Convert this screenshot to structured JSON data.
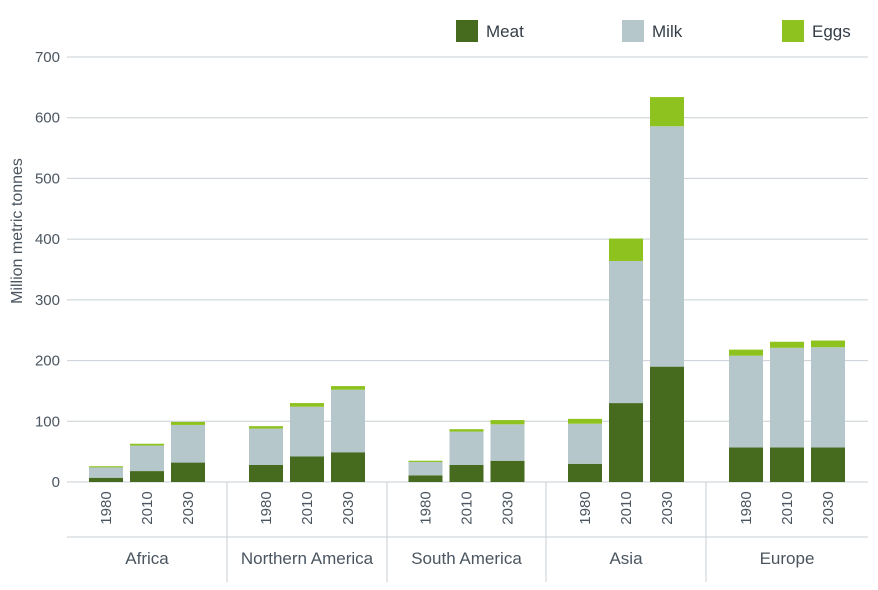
{
  "chart_data": {
    "type": "bar",
    "stacked": true,
    "ylabel": "Million metric tonnes",
    "ylim": [
      0,
      700
    ],
    "yticks": [
      0,
      100,
      200,
      300,
      400,
      500,
      600,
      700
    ],
    "grid": true,
    "legend_position": "top-right",
    "groups": [
      "Africa",
      "Northern America",
      "South America",
      "Asia",
      "Europe"
    ],
    "years": [
      "1980",
      "2010",
      "2030"
    ],
    "series": [
      {
        "name": "Meat",
        "color": "#466b1f",
        "values": [
          [
            7,
            18,
            32
          ],
          [
            28,
            42,
            49
          ],
          [
            11,
            28,
            35
          ],
          [
            30,
            130,
            190
          ],
          [
            57,
            57,
            57
          ]
        ]
      },
      {
        "name": "Milk",
        "color": "#b6c7cc",
        "values": [
          [
            17,
            42,
            62
          ],
          [
            60,
            82,
            103
          ],
          [
            22,
            55,
            60
          ],
          [
            66,
            234,
            396
          ],
          [
            151,
            164,
            165
          ]
        ]
      },
      {
        "name": "Eggs",
        "color": "#8dc21f",
        "values": [
          [
            2,
            3,
            5
          ],
          [
            4,
            6,
            6
          ],
          [
            2,
            4,
            7
          ],
          [
            8,
            37,
            48
          ],
          [
            10,
            10,
            11
          ]
        ]
      }
    ]
  }
}
